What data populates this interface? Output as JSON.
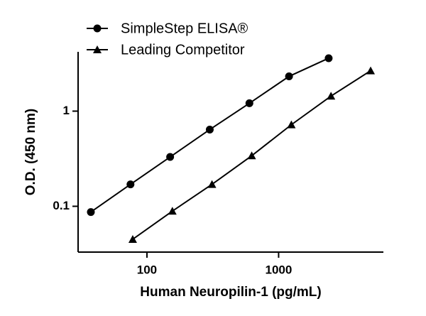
{
  "chart_data": {
    "type": "line",
    "xlabel": "Human Neuropilin-1 (pg/mL)",
    "ylabel": "O.D. (450 nm)",
    "xscale": "log",
    "yscale": "log",
    "xlim": [
      30,
      6250
    ],
    "xticks": [
      100,
      1000
    ],
    "ylim": [
      0.033,
      4.2
    ],
    "yticks": [
      0.1,
      1
    ],
    "legend": "top-left",
    "series": [
      {
        "name": "SimpleStep ELISA®",
        "color": "#000000",
        "marker": "circle",
        "x": [
          37.5,
          75,
          150,
          300,
          600,
          1200,
          2400
        ],
        "values": [
          0.087,
          0.17,
          0.33,
          0.64,
          1.21,
          2.32,
          3.6
        ]
      },
      {
        "name": "Leading Competitor",
        "color": "#000000",
        "marker": "triangle",
        "x": [
          78,
          156,
          312,
          625,
          1250,
          2500,
          5000
        ],
        "values": [
          0.045,
          0.089,
          0.17,
          0.34,
          0.72,
          1.44,
          2.66
        ]
      }
    ]
  }
}
